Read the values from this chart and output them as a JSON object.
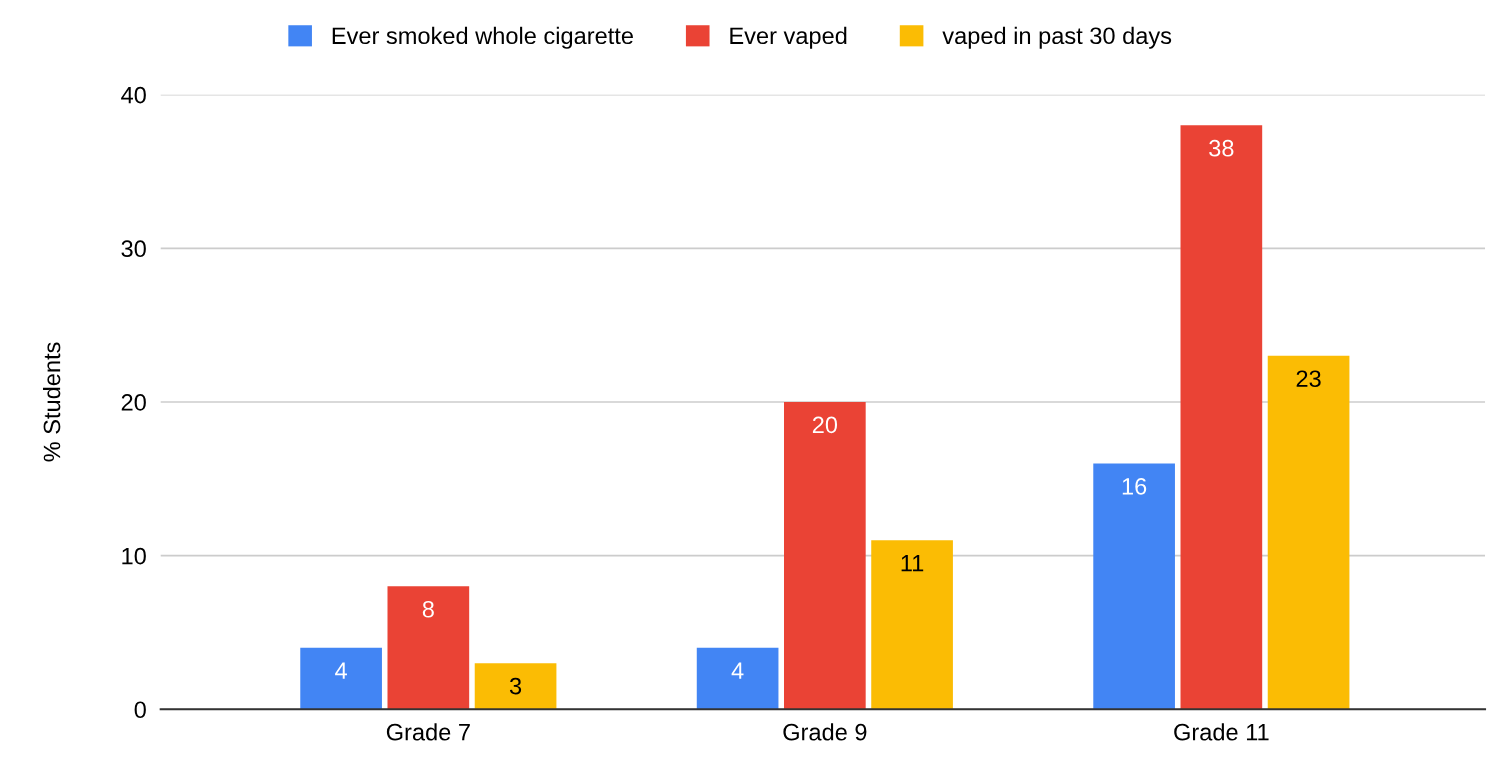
{
  "chart_data": {
    "type": "bar",
    "ylabel": "% Students",
    "categories": [
      "Grade 7",
      "Grade 9",
      "Grade 11"
    ],
    "series": [
      {
        "name": "Ever smoked whole cigarette",
        "color": "#4285f4",
        "values": [
          4,
          4,
          16
        ]
      },
      {
        "name": "Ever vaped",
        "color": "#ea4335",
        "values": [
          8,
          20,
          38
        ]
      },
      {
        "name": "vaped in past 30 days",
        "color": "#fbbc04",
        "values": [
          3,
          11,
          23
        ]
      }
    ],
    "ylim": [
      0,
      40
    ],
    "yticks": [
      0,
      10,
      20,
      30,
      40
    ],
    "grid": "y",
    "legend": "top",
    "data_labels": true
  }
}
